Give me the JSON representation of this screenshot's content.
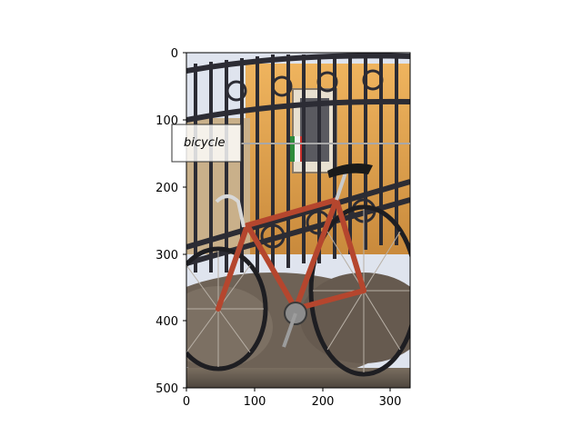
{
  "figure": {
    "annotation": {
      "label": "bicycle"
    },
    "x_axis": {
      "ticks": [
        "0",
        "100",
        "200",
        "300"
      ]
    },
    "y_axis": {
      "ticks": [
        "0",
        "100",
        "200",
        "300",
        "400",
        "500"
      ]
    },
    "image_content": {
      "subject": "red road bicycle leaning against wrought-iron railing",
      "palette": {
        "wall": "#e3a24e",
        "iron": "#2c2c34",
        "frame": "#b5462e",
        "sky": "#dfe4ee",
        "ground": "#6b625a"
      }
    }
  }
}
